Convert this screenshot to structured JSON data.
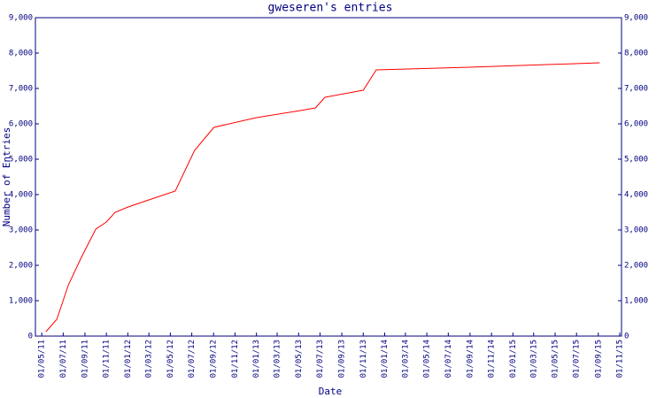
{
  "chart_data": {
    "type": "line",
    "title": "gweseren's entries",
    "x_label": "Date",
    "y_label": "Number of Entries",
    "series": [
      {
        "name": "entries",
        "color": "#ff0000",
        "x": [
          "2011-05-13",
          "2011-06-13",
          "2011-07-16",
          "2011-08-23",
          "2011-10-02",
          "2011-11-01",
          "2011-11-26",
          "2012-01-02",
          "2012-03-01",
          "2012-05-15",
          "2012-07-09",
          "2012-09-02",
          "2013-01-01",
          "2013-05-06",
          "2013-06-18",
          "2013-07-15",
          "2013-11-01",
          "2013-12-08",
          "2014-08-31",
          "2015-09-05"
        ],
        "values": [
          125,
          475,
          1450,
          2250,
          3025,
          3225,
          3500,
          3650,
          3850,
          4100,
          5250,
          5900,
          6175,
          6375,
          6450,
          6750,
          6950,
          7525,
          7600,
          7725
        ]
      }
    ],
    "xlim": [
      "2011-04-13",
      "2015-11-06"
    ],
    "xticks": [
      {
        "value": "2011-05-01",
        "label": "01/05/11"
      },
      {
        "value": "2011-07-01",
        "label": "01/07/11"
      },
      {
        "value": "2011-09-01",
        "label": "01/09/11"
      },
      {
        "value": "2011-11-01",
        "label": "01/11/11"
      },
      {
        "value": "2012-01-01",
        "label": "01/01/12"
      },
      {
        "value": "2012-03-01",
        "label": "01/03/12"
      },
      {
        "value": "2012-05-01",
        "label": "01/05/12"
      },
      {
        "value": "2012-07-01",
        "label": "01/07/12"
      },
      {
        "value": "2012-09-01",
        "label": "01/09/12"
      },
      {
        "value": "2012-11-01",
        "label": "01/11/12"
      },
      {
        "value": "2013-01-01",
        "label": "01/01/13"
      },
      {
        "value": "2013-03-01",
        "label": "01/03/13"
      },
      {
        "value": "2013-05-01",
        "label": "01/05/13"
      },
      {
        "value": "2013-07-01",
        "label": "01/07/13"
      },
      {
        "value": "2013-09-01",
        "label": "01/09/13"
      },
      {
        "value": "2013-11-01",
        "label": "01/11/13"
      },
      {
        "value": "2014-01-01",
        "label": "01/01/14"
      },
      {
        "value": "2014-03-01",
        "label": "01/03/14"
      },
      {
        "value": "2014-05-01",
        "label": "01/05/14"
      },
      {
        "value": "2014-07-01",
        "label": "01/07/14"
      },
      {
        "value": "2014-09-01",
        "label": "01/09/14"
      },
      {
        "value": "2014-11-01",
        "label": "01/11/14"
      },
      {
        "value": "2015-01-01",
        "label": "01/01/15"
      },
      {
        "value": "2015-03-01",
        "label": "01/03/15"
      },
      {
        "value": "2015-05-01",
        "label": "01/05/15"
      },
      {
        "value": "2015-07-01",
        "label": "01/07/15"
      },
      {
        "value": "2015-09-01",
        "label": "01/09/15"
      },
      {
        "value": "2015-11-01",
        "label": "01/11/15"
      }
    ],
    "ylim": [
      0,
      9000
    ],
    "yticks": [
      0,
      {
        "value": 1000,
        "label": "1,000"
      },
      {
        "value": 2000,
        "label": "2,000"
      },
      {
        "value": 3000,
        "label": "3,000"
      },
      {
        "value": 4000,
        "label": "4,000"
      },
      {
        "value": 5000,
        "label": "5,000"
      },
      {
        "value": 6000,
        "label": "6,000"
      },
      {
        "value": 7000,
        "label": "7,000"
      },
      {
        "value": 8000,
        "label": "8,000"
      },
      {
        "value": 9000,
        "label": "9,000"
      }
    ],
    "axis_color": "#000080",
    "grid": false
  }
}
